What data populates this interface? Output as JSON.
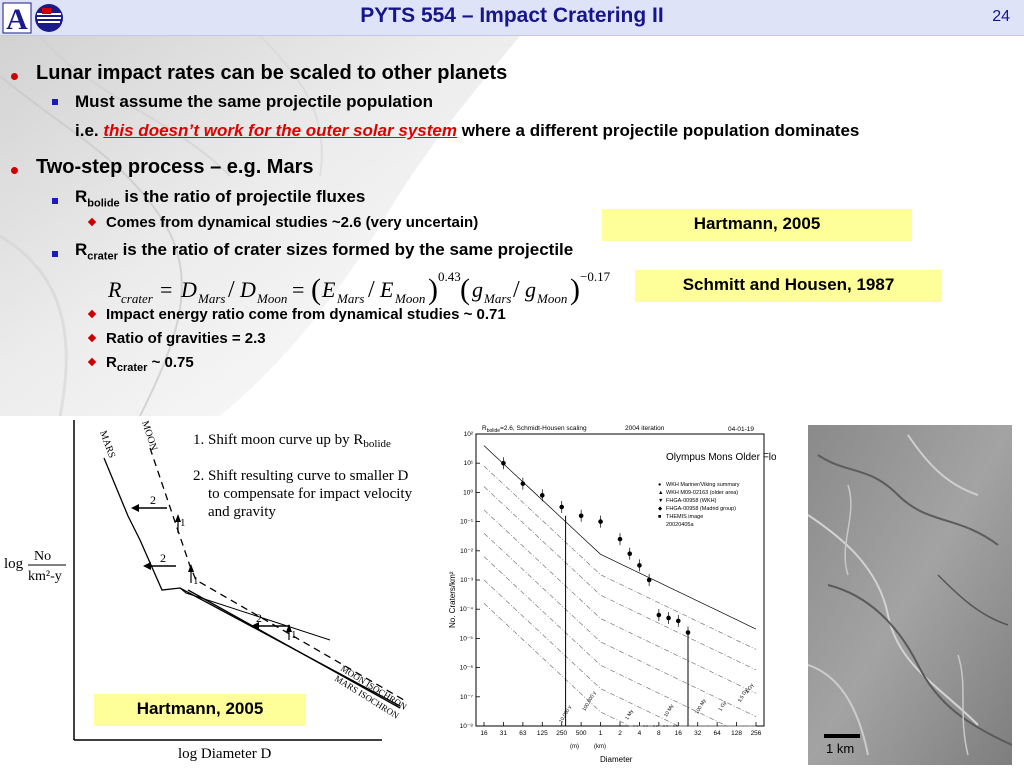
{
  "header": {
    "title": "PYTS 554 – Impact Cratering II",
    "page_number": "24",
    "logo_letter": "A"
  },
  "bullets": {
    "b1": "Lunar impact rates can be scaled to other planets",
    "b1_sub1": "Must assume the same projectile population",
    "b1_sub2_prefix": "i.e. ",
    "b1_sub2_red": "this doesn’t work for the outer solar system",
    "b1_sub2_suffix": " where a different projectile population dominates",
    "b2": "Two-step process – e.g. Mars",
    "rb_R": "R",
    "rb_sub": "bolide",
    "rb_rest": " is the ratio of projectile fluxes",
    "rb_detail": "Comes from dynamical studies ~2.6 (very uncertain)",
    "rc_R": "R",
    "rc_sub": "crater",
    "rc_rest": " is the ratio of crater sizes formed by the same projectile",
    "d1": "Impact energy ratio come from dynamical studies ~ 0.71",
    "d2": "Ratio of gravities = 2.3",
    "d3_R": "R",
    "d3_sub": "crater",
    "d3_rest": " ~ 0.75"
  },
  "callouts": {
    "hartmann_top": "Hartmann, 2005",
    "schmitt": "Schmitt and Housen, 1987",
    "hartmann_bottom": "Hartmann, 2005"
  },
  "equation": {
    "R": "R",
    "sub_crater": "crater",
    "eq": "=",
    "D": "D",
    "sub_mars": "Mars",
    "slash": "/",
    "sub_moon": "Moon",
    "E": "E",
    "g": "g",
    "exp1": "0.43",
    "exp2": "−0.17"
  },
  "left_figure": {
    "mars_label": "MARS",
    "moon_label": "MOON",
    "step1": "1.  Shift moon curve up by R",
    "step1_sub": "bolide",
    "step2_l1": "2.  Shift resulting curve to smaller D",
    "step2_l2": "to compensate for impact velocity",
    "step2_l3": "and gravity",
    "ylabel_log": "log",
    "ylabel_num": "No",
    "ylabel_den": "km²-y",
    "xlabel": "log Diameter D",
    "moon_isochron": "MOON ISOCHRON",
    "mars_isochron": "MARS ISOCHRON",
    "arrow_1": "1",
    "arrow_2": "2"
  },
  "chart_data": {
    "type": "scatter",
    "title": "Olympus Mons Older Flows",
    "header_left": "R",
    "header_left_sub": "bolide",
    "header_left_rest": "=2.6, Schmidt-Housen scaling",
    "header_mid": "2004 iteration",
    "header_right": "04-01-19",
    "xlabel": "Diameter",
    "xsublabel_m": "(m)",
    "xsublabel_km": "(km)",
    "ylabel": "No. Craters/km²",
    "x_ticks": [
      "16",
      "31",
      "63",
      "125",
      "250",
      "500",
      "1",
      "2",
      "4",
      "8",
      "16",
      "32",
      "64",
      "128",
      "256"
    ],
    "y_ticks": [
      "10²",
      "10¹",
      "10⁰",
      "10⁻¹",
      "10⁻²",
      "10⁻³",
      "10⁻⁴",
      "10⁻⁵",
      "10⁻⁶",
      "10⁻⁷",
      "10⁻⁸"
    ],
    "legend": [
      "WKH Mariner/Viking summary",
      "WKH M09-02163 (older area)",
      "FHGA-00958 (WKH)",
      "FHGA-00958 (Madrid group)",
      "THEMIS image",
      "20020405a"
    ],
    "isochron_labels": [
      "4 Gy",
      "3.5 Gy",
      "1 Gy",
      "100 My",
      "10 My",
      "1 My",
      "100,000 y",
      "10,000 y"
    ],
    "series": [
      {
        "name": "WKH Mariner/Viking summary",
        "x_index": [
          1,
          2,
          3,
          4,
          5,
          6,
          7,
          7.5,
          8,
          8.5,
          9,
          9.5,
          10,
          10.5
        ],
        "log10_y": [
          1,
          0.3,
          -0.1,
          -0.5,
          -0.8,
          -1.0,
          -1.6,
          -2.1,
          -2.5,
          -3.0,
          -4.2,
          -4.3,
          -4.4,
          -4.8
        ]
      }
    ]
  },
  "photo": {
    "scale_label": "1 km"
  }
}
